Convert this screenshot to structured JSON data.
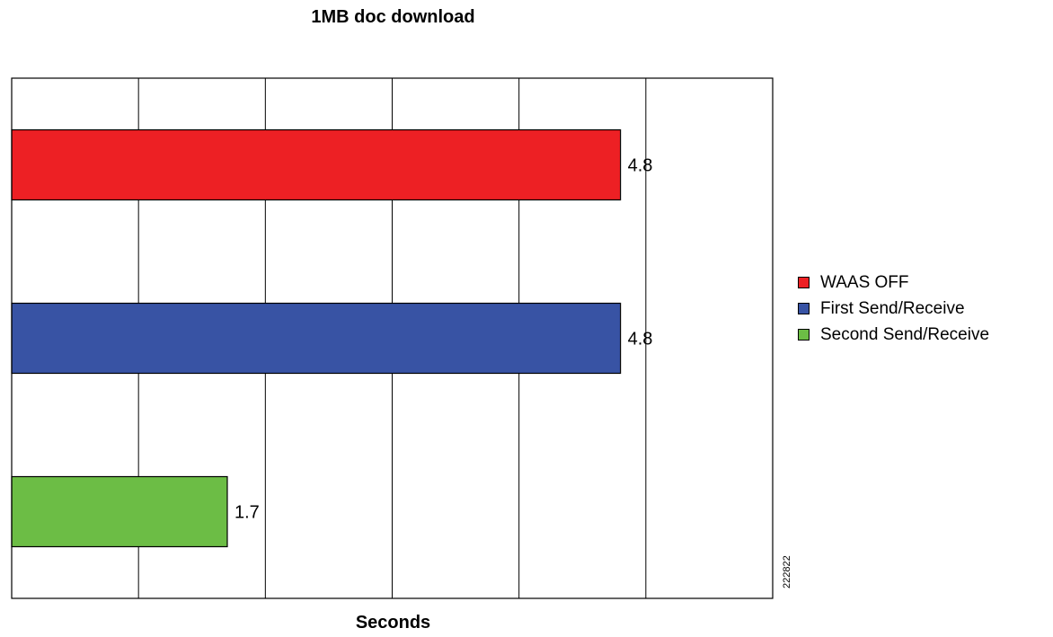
{
  "chart_data": {
    "type": "bar",
    "orientation": "horizontal",
    "title": "1MB doc download",
    "xlabel": "Seconds",
    "ylabel": "",
    "xlim": [
      0,
      6
    ],
    "grid": true,
    "legend_position": "right",
    "series": [
      {
        "name": "WAAS OFF",
        "value": 4.8,
        "label": "4.8",
        "color": "#ed2024"
      },
      {
        "name": "First Send/Receive",
        "value": 4.8,
        "label": "4.8",
        "color": "#3853a4"
      },
      {
        "name": "Second Send/Receive",
        "value": 1.7,
        "label": "1.7",
        "color": "#6cbd45"
      }
    ]
  },
  "figure_id": "222822"
}
